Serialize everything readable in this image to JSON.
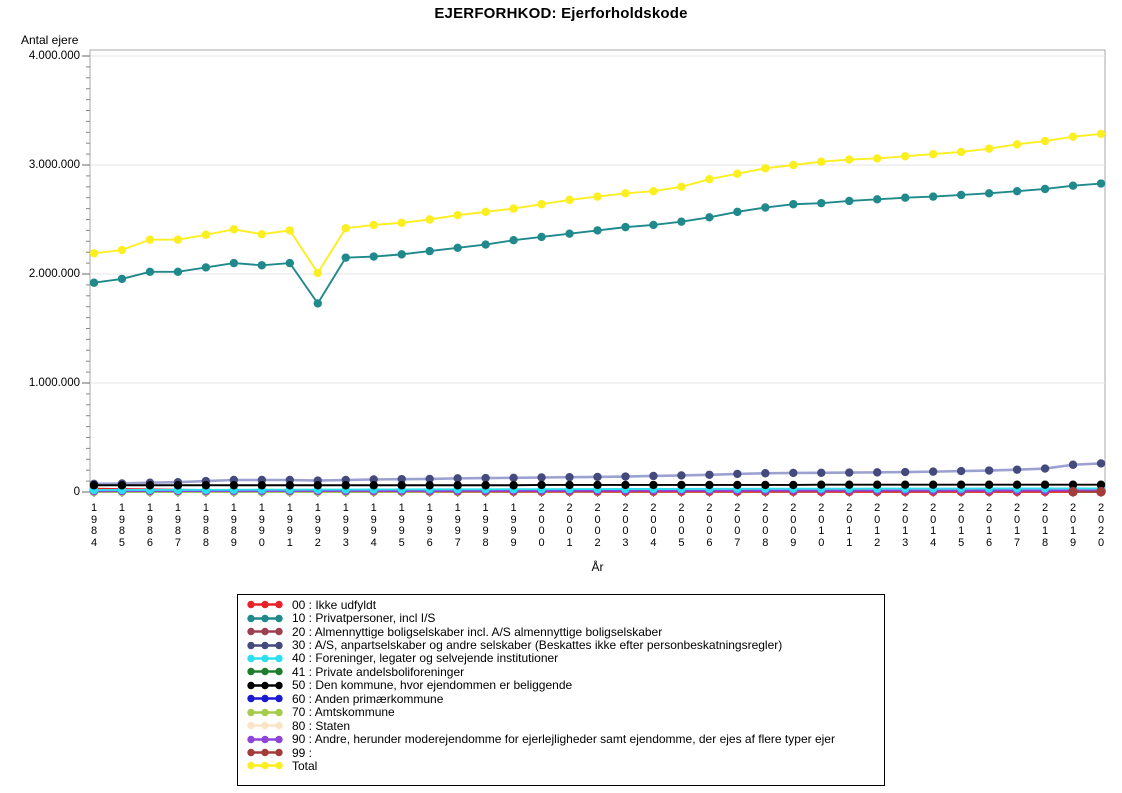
{
  "title": "EJERFORHKOD: Ejerforholdskode",
  "chart_data": {
    "type": "line",
    "title": "EJERFORHKOD: Ejerforholdskode",
    "xlabel": "År",
    "ylabel": "Antal ejere",
    "ylim": [
      0,
      4000000
    ],
    "y_major_step": 1000000,
    "y_minor_step": 100000,
    "grid": "horizontal-major",
    "legend_position": "bottom-box",
    "y_ticks": [
      {
        "value": 4000000,
        "label": "4.000.000"
      },
      {
        "value": 3000000,
        "label": "3.000.000"
      },
      {
        "value": 2000000,
        "label": "2.000.000"
      },
      {
        "value": 1000000,
        "label": "1.000.000"
      },
      {
        "value": 0,
        "label": "0"
      }
    ],
    "categories": [
      1984,
      1985,
      1986,
      1987,
      1988,
      1989,
      1990,
      1991,
      1992,
      1993,
      1994,
      1995,
      1996,
      1997,
      1998,
      1999,
      2000,
      2001,
      2002,
      2003,
      2004,
      2005,
      2006,
      2007,
      2008,
      2009,
      2010,
      2011,
      2012,
      2013,
      2014,
      2015,
      2016,
      2017,
      2018,
      2019,
      2020
    ],
    "draw_order": [
      "80",
      "41",
      "60",
      "20",
      "70",
      "00",
      "90",
      "40",
      "30",
      "50",
      "99",
      "10",
      "total"
    ],
    "series": [
      {
        "id": "00",
        "legend_label": "00 : Ikke udfyldt",
        "color": "#e82228",
        "values": [
          30000,
          27000,
          24000,
          21000,
          18000,
          16000,
          14000,
          12000,
          10000,
          9000,
          8000,
          7000,
          6000,
          5500,
          5000,
          4500,
          4000,
          3800,
          3600,
          3400,
          3200,
          3000,
          2900,
          2800,
          2700,
          2600,
          2500,
          2400,
          2300,
          2200,
          2100,
          2000,
          2000,
          2000,
          2000,
          2000,
          2000
        ]
      },
      {
        "id": "10",
        "legend_label": "10 : Privatpersoner, incl I/S",
        "color": "#20898b",
        "values": [
          1920000,
          1955000,
          2020000,
          2020000,
          2060000,
          2100000,
          2080000,
          2100000,
          1730000,
          2150000,
          2160000,
          2180000,
          2210000,
          2240000,
          2270000,
          2310000,
          2340000,
          2370000,
          2400000,
          2430000,
          2450000,
          2480000,
          2520000,
          2570000,
          2610000,
          2640000,
          2650000,
          2670000,
          2685000,
          2700000,
          2710000,
          2725000,
          2740000,
          2760000,
          2780000,
          2810000,
          2830000
        ]
      },
      {
        "id": "20",
        "legend_label": "20 : Almennyttige boligselskaber incl. A/S almennyttige boligselskaber",
        "color": "#9e4052",
        "values": [
          8000,
          8000,
          8000,
          8000,
          8000,
          8000,
          8000,
          8000,
          8000,
          8000,
          8000,
          8000,
          8000,
          8000,
          8000,
          8000,
          8000,
          8000,
          8000,
          8000,
          8000,
          8000,
          8000,
          8000,
          8000,
          8000,
          8000,
          8000,
          8000,
          8000,
          8000,
          8000,
          8000,
          8000,
          8000,
          8000,
          8000
        ]
      },
      {
        "id": "30",
        "legend_label": "30 : A/S, anpartselskaber og andre selskaber (Beskattes ikke efter personbeskatningsregler)",
        "color": "#454a7c",
        "line_color": "#9ba2d2",
        "values": [
          75000,
          78000,
          85000,
          90000,
          100000,
          110000,
          110000,
          110000,
          105000,
          110000,
          115000,
          118000,
          120000,
          125000,
          128000,
          130000,
          133000,
          136000,
          138000,
          142000,
          147000,
          152000,
          158000,
          166000,
          172000,
          175000,
          176000,
          178000,
          180000,
          183000,
          187000,
          192000,
          197000,
          205000,
          215000,
          250000,
          262000
        ]
      },
      {
        "id": "40",
        "legend_label": "40 : Foreninger, legater og selvejende institutioner",
        "color": "#2bdfee",
        "values": [
          18000,
          18500,
          19000,
          19500,
          20000,
          20500,
          21000,
          21500,
          22000,
          22500,
          23000,
          23500,
          24000,
          24500,
          25000,
          25500,
          26000,
          26500,
          27000,
          27500,
          28000,
          28500,
          29000,
          29500,
          30000,
          30200,
          30500,
          30800,
          31000,
          31200,
          31500,
          31800,
          32000,
          32300,
          32500,
          32800,
          33000
        ]
      },
      {
        "id": "41",
        "legend_label": "41 : Private andelsboliforeninger",
        "color": "#1e7d2c",
        "values": [
          3000,
          3200,
          3400,
          3600,
          3800,
          4000,
          4200,
          4400,
          4600,
          4800,
          5000,
          5200,
          5400,
          5600,
          5800,
          6000,
          6200,
          6400,
          6600,
          6800,
          7000,
          7200,
          7400,
          7600,
          7800,
          8000,
          8100,
          8200,
          8300,
          8400,
          8500,
          8600,
          8700,
          8800,
          8900,
          9000,
          9100
        ]
      },
      {
        "id": "50",
        "legend_label": "50 : Den kommune, hvor ejendommen er beliggende",
        "color": "#000000",
        "values": [
          62000,
          62000,
          62000,
          62000,
          62000,
          62000,
          62000,
          62000,
          62000,
          62000,
          62000,
          62000,
          62000,
          62000,
          62000,
          62000,
          65000,
          65000,
          65000,
          65000,
          65000,
          65000,
          65000,
          65000,
          65000,
          65000,
          67000,
          67000,
          67000,
          67000,
          67000,
          67000,
          67000,
          67000,
          67000,
          67000,
          67000
        ]
      },
      {
        "id": "60",
        "legend_label": "60 : Anden primærkommune",
        "color": "#1a1ad1",
        "values": [
          1500,
          1500,
          1500,
          1500,
          1500,
          1500,
          1500,
          1500,
          1500,
          1500,
          1500,
          1500,
          1500,
          1500,
          1500,
          1500,
          1500,
          1500,
          1500,
          1500,
          1500,
          1500,
          1500,
          1500,
          1500,
          1500,
          1500,
          1500,
          1500,
          1500,
          1500,
          1500,
          1500,
          1500,
          1500,
          1500,
          1500
        ]
      },
      {
        "id": "70",
        "legend_label": "70 : Amtskommune",
        "color": "#a5cb4a",
        "values": [
          1000,
          1000,
          1000,
          1000,
          1000,
          1000,
          1000,
          1000,
          1000,
          1000,
          1000,
          1000,
          1000,
          1000,
          1000,
          1000,
          1000,
          1000,
          1000,
          1000,
          1000,
          1000,
          1000,
          1000,
          1000,
          1000,
          1000,
          1000,
          1000,
          1000,
          1000,
          1000,
          1000,
          1000,
          1000,
          1000,
          1000
        ]
      },
      {
        "id": "80",
        "legend_label": "80 : Staten",
        "color": "#f9e4c8",
        "values": [
          5000,
          5000,
          5000,
          5000,
          5000,
          5000,
          5000,
          5000,
          5000,
          5000,
          5000,
          5000,
          5000,
          5000,
          5000,
          5000,
          5000,
          5000,
          5000,
          5000,
          5000,
          5000,
          5000,
          5000,
          5000,
          5000,
          5000,
          5000,
          5000,
          5000,
          5000,
          5000,
          5000,
          5000,
          5000,
          5000,
          5000
        ]
      },
      {
        "id": "90",
        "legend_label": "90 : Andre, herunder moderejendomme for ejerlejligheder samt ejendomme, der ejes af flere typer ejer",
        "color": "#8e44d8",
        "values": [
          8000,
          8200,
          8400,
          8600,
          8800,
          9000,
          9200,
          9400,
          9600,
          9800,
          10000,
          10200,
          10400,
          10600,
          10800,
          11000,
          11200,
          11400,
          11600,
          11800,
          12000,
          12200,
          12400,
          12600,
          12800,
          13000,
          13100,
          13200,
          13300,
          13400,
          13500,
          13600,
          13700,
          13800,
          13900,
          14000,
          14100
        ]
      },
      {
        "id": "99",
        "legend_label": "99 :",
        "color": "#a23c3a",
        "values": [
          null,
          null,
          null,
          null,
          null,
          null,
          null,
          null,
          null,
          null,
          null,
          null,
          null,
          null,
          null,
          null,
          null,
          null,
          null,
          null,
          null,
          null,
          null,
          null,
          null,
          null,
          null,
          null,
          null,
          null,
          null,
          null,
          null,
          null,
          null,
          3000,
          3000
        ]
      },
      {
        "id": "total",
        "legend_label": "Total",
        "color": "#fbee21",
        "values": [
          2190000,
          2220000,
          2315000,
          2315000,
          2360000,
          2410000,
          2365000,
          2400000,
          2010000,
          2420000,
          2450000,
          2470000,
          2500000,
          2540000,
          2570000,
          2600000,
          2640000,
          2680000,
          2710000,
          2740000,
          2760000,
          2800000,
          2870000,
          2920000,
          2970000,
          3000000,
          3030000,
          3050000,
          3060000,
          3080000,
          3100000,
          3120000,
          3150000,
          3190000,
          3220000,
          3260000,
          3285000
        ]
      }
    ]
  }
}
